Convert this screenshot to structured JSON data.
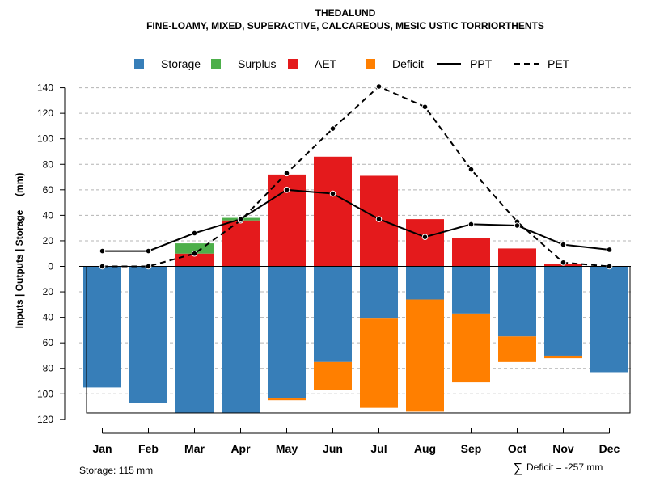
{
  "chart_data": {
    "type": "bar",
    "title": "THEDALUND",
    "subtitle": "FINE-LOAMY, MIXED, SUPERACTIVE, CALCAREOUS, MESIC USTIC TORRIORTHENTS",
    "ylabel": "Inputs | Outputs | Storage     (mm)",
    "ylim": [
      -120,
      145
    ],
    "yticks": [
      140,
      120,
      100,
      80,
      60,
      40,
      20,
      0,
      -20,
      -40,
      -60,
      -80,
      -100,
      -120
    ],
    "ytick_labels": [
      "140",
      "120",
      "100",
      "80",
      "60",
      "40",
      "20",
      "0",
      "20",
      "40",
      "60",
      "80",
      "100",
      "120"
    ],
    "categories": [
      "Jan",
      "Feb",
      "Mar",
      "Apr",
      "May",
      "Jun",
      "Jul",
      "Aug",
      "Sep",
      "Oct",
      "Nov",
      "Dec"
    ],
    "series": [
      {
        "name": "Storage",
        "color": "#377EB8",
        "values": [
          95,
          107,
          115,
          115,
          103,
          75,
          41,
          26,
          37,
          55,
          70,
          83
        ]
      },
      {
        "name": "Surplus",
        "color": "#4DAF4A",
        "values": [
          0,
          0,
          8,
          2,
          0,
          0,
          0,
          0,
          0,
          0,
          0,
          0
        ]
      },
      {
        "name": "AET",
        "color": "#E41A1C",
        "values": [
          0,
          0,
          10,
          36,
          72,
          86,
          71,
          37,
          22,
          14,
          2,
          0
        ]
      },
      {
        "name": "Deficit",
        "color": "#FF7F00",
        "values": [
          0,
          0,
          0,
          0,
          2,
          22,
          70,
          88,
          54,
          20,
          2,
          0
        ]
      },
      {
        "name": "PPT",
        "color": "#000000",
        "style": "solid",
        "values": [
          12,
          12,
          26,
          37,
          60,
          57,
          37,
          23,
          33,
          32,
          17,
          13
        ]
      },
      {
        "name": "PET",
        "color": "#000000",
        "style": "dashed",
        "values": [
          0,
          0,
          10,
          36,
          73,
          108,
          141,
          125,
          76,
          35,
          3,
          0
        ]
      }
    ],
    "storage_capacity": 115,
    "grid": true,
    "legend": "top",
    "footnotes": {
      "storage": "Storage: 115 mm",
      "deficit_symbol": "∑",
      "deficit": "Deficit = -257 mm"
    }
  }
}
